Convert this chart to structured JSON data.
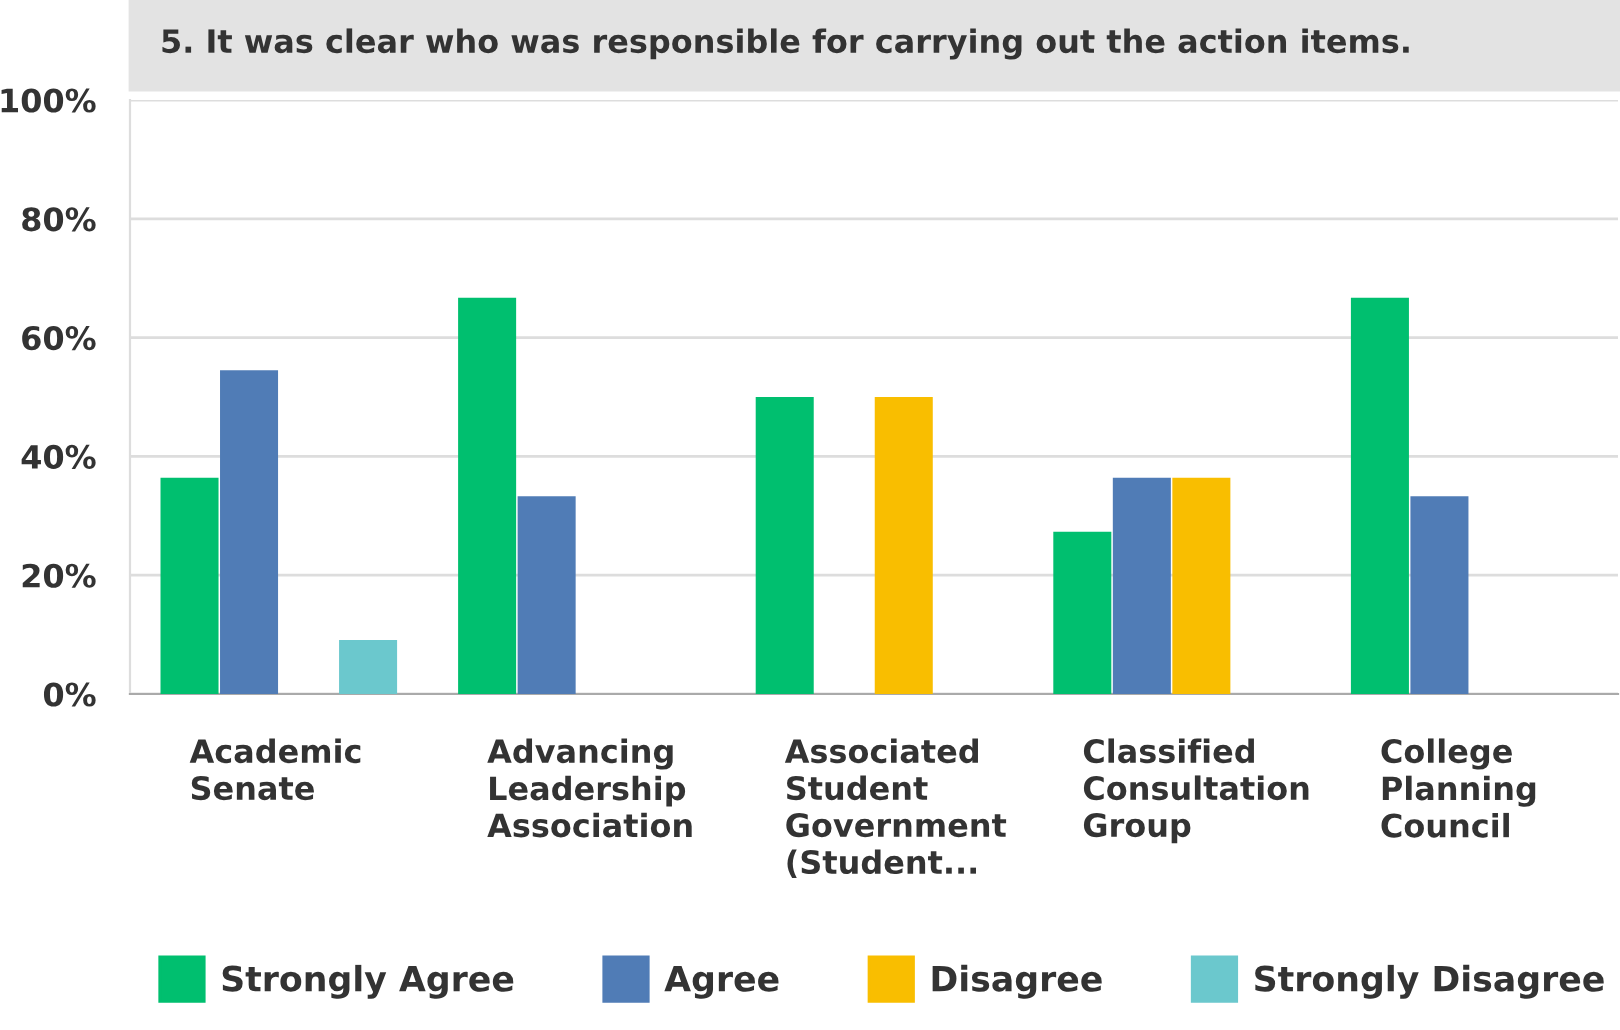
{
  "chart_data": {
    "type": "bar",
    "title": "5. It was clear who was responsible for carrying out the action items.",
    "categories": [
      "Academic\nSenate",
      "Advancing\nLeadership\nAssociation",
      "Associated\nStudent\nGovernment\n(Student...",
      "Classified\nConsultation\nGroup",
      "College\nPlanning\nCouncil"
    ],
    "series": [
      {
        "name": "Strongly Agree",
        "color": "#00bf6f",
        "values": [
          36.4,
          66.7,
          50,
          27.3,
          66.7
        ]
      },
      {
        "name": "Agree",
        "color": "#507cb6",
        "values": [
          54.5,
          33.3,
          0,
          36.4,
          33.3
        ]
      },
      {
        "name": "Disagree",
        "color": "#f9be00",
        "values": [
          0,
          0,
          50,
          36.4,
          0
        ]
      },
      {
        "name": "Strongly Disagree",
        "color": "#6bc8cd",
        "values": [
          9.1,
          0,
          0,
          0,
          0
        ]
      }
    ],
    "ylim": [
      0,
      100
    ],
    "yticks": [
      {
        "value": 0,
        "label": "0%"
      },
      {
        "value": 20,
        "label": "20%"
      },
      {
        "value": 40,
        "label": "40%"
      },
      {
        "value": 60,
        "label": "60%"
      },
      {
        "value": 80,
        "label": "80%"
      },
      {
        "value": 100,
        "label": "100%"
      }
    ],
    "grid": "y",
    "legend": "bottom"
  }
}
